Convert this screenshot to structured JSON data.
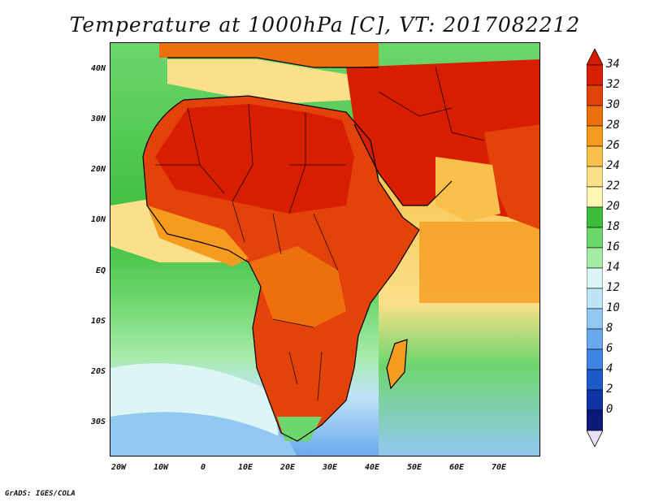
{
  "title": "Temperature at 1000hPa [C], VT: 2017082212",
  "credit": "GrADS: IGES/COLA",
  "lat_labels": [
    "40N",
    "30N",
    "20N",
    "10N",
    "EQ",
    "10S",
    "20S",
    "30S"
  ],
  "lon_labels": [
    "20W",
    "10W",
    "0",
    "10E",
    "20E",
    "30E",
    "40E",
    "50E",
    "60E",
    "70E"
  ],
  "colorbar": {
    "labels": [
      "34",
      "32",
      "30",
      "28",
      "26",
      "24",
      "22",
      "20",
      "18",
      "16",
      "14",
      "12",
      "10",
      "8",
      "6",
      "4",
      "2",
      "0"
    ],
    "colors": [
      "#d71e00",
      "#e3420b",
      "#ee6f0e",
      "#f59b1e",
      "#f9c04b",
      "#fbe08a",
      "#fef6b4",
      "#3cbe3c",
      "#6dd66d",
      "#a5eba5",
      "#dcf5f5",
      "#bfe4f7",
      "#93c8f2",
      "#68a8ec",
      "#3f84e1",
      "#1d5ac8",
      "#0e35a3",
      "#0b1a78"
    ]
  }
}
